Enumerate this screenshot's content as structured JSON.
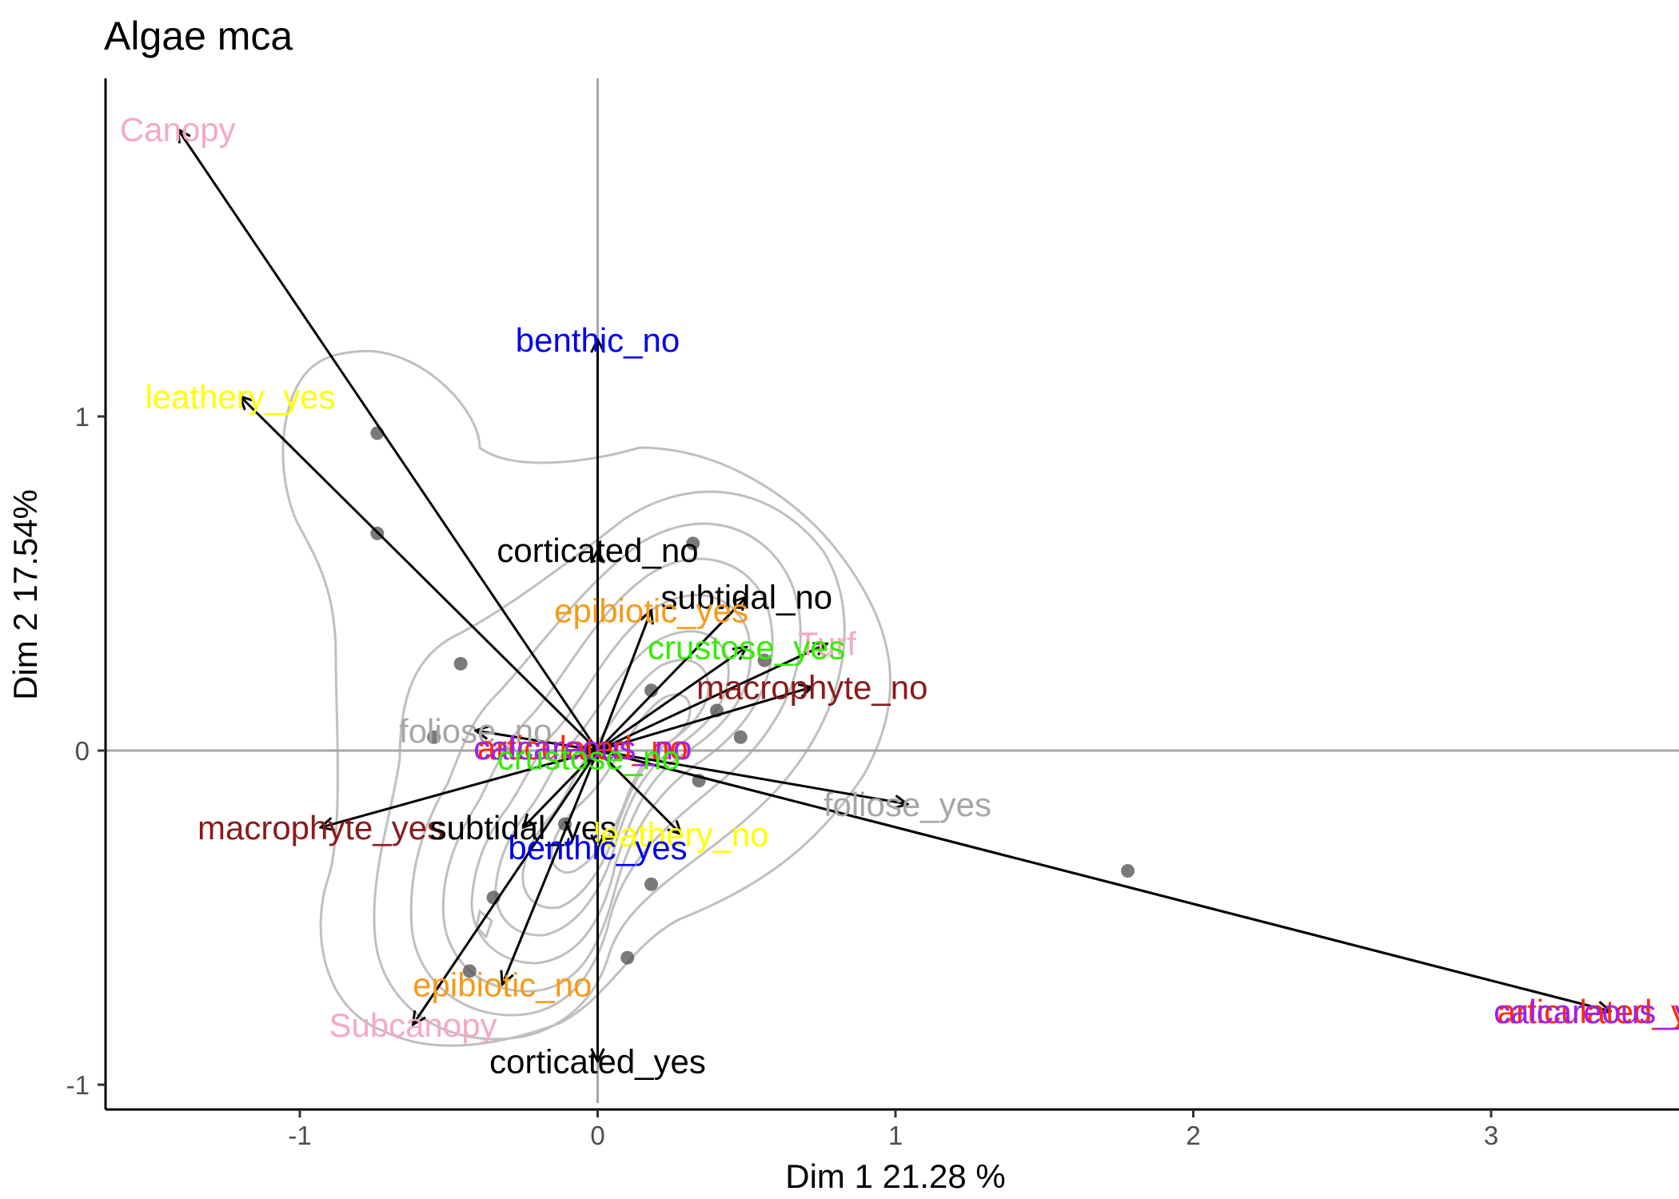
{
  "chart_data": {
    "type": "scatter",
    "title": "Algae mca",
    "xlabel": "Dim 1 21.28 %",
    "ylabel": "Dim 2 17.54%",
    "xlim": [
      -1.65,
      3.65
    ],
    "ylim": [
      -1.06,
      1.99
    ],
    "x_ticks": [
      -1,
      0,
      1,
      2,
      3
    ],
    "y_ticks": [
      -1,
      0,
      1
    ],
    "x_tick_labels": [
      "-1",
      "0",
      "1",
      "2",
      "3"
    ],
    "y_tick_labels": [
      "-1",
      "0",
      "1"
    ],
    "reference_lines": {
      "x": 0,
      "y": 0,
      "color": "#a6a6a6"
    },
    "grid": false,
    "colors": {
      "arrow": "#000000",
      "point": "#4d4d4d",
      "contour": "#bfbfbf"
    },
    "points": [
      {
        "x": -0.74,
        "y": 0.95
      },
      {
        "x": -0.74,
        "y": 0.65
      },
      {
        "x": -0.46,
        "y": 0.26
      },
      {
        "x": -0.55,
        "y": 0.04
      },
      {
        "x": -0.43,
        "y": -0.66
      },
      {
        "x": -0.35,
        "y": -0.44
      },
      {
        "x": -0.11,
        "y": -0.22
      },
      {
        "x": 0.18,
        "y": 0.18
      },
      {
        "x": 0.32,
        "y": 0.62
      },
      {
        "x": 0.4,
        "y": 0.12
      },
      {
        "x": 0.48,
        "y": 0.04
      },
      {
        "x": 0.56,
        "y": 0.27
      },
      {
        "x": 0.34,
        "y": -0.09
      },
      {
        "x": 0.18,
        "y": -0.4
      },
      {
        "x": 0.1,
        "y": -0.62
      },
      {
        "x": 1.78,
        "y": -0.36
      }
    ],
    "variables": [
      {
        "name": "Canopy",
        "x": -1.41,
        "y": 1.86,
        "color": "#f5aac0"
      },
      {
        "name": "leathery_yes",
        "x": -1.2,
        "y": 1.06,
        "color": "#ffff00"
      },
      {
        "name": "benthic_no",
        "x": 0.0,
        "y": 1.23,
        "color": "#0000ee"
      },
      {
        "name": "corticated_no",
        "x": 0.0,
        "y": 0.6,
        "color": "#000000"
      },
      {
        "name": "subtidal_no",
        "x": 0.5,
        "y": 0.46,
        "color": "#000000"
      },
      {
        "name": "epibiotic_yes",
        "x": 0.18,
        "y": 0.42,
        "color": "#f59a1a"
      },
      {
        "name": "Turf",
        "x": 0.77,
        "y": 0.32,
        "color": "#f5aac0"
      },
      {
        "name": "crustose_yes",
        "x": 0.5,
        "y": 0.31,
        "color": "#33ee00"
      },
      {
        "name": "macrophyte_no",
        "x": 0.72,
        "y": 0.19,
        "color": "#8b1a1a"
      },
      {
        "name": "foliose_no",
        "x": -0.41,
        "y": 0.06,
        "color": "#a6a6a6"
      },
      {
        "name": "articulated_no",
        "x": -0.05,
        "y": 0.01,
        "color": "#ff2b00"
      },
      {
        "name": "calcareous_no",
        "x": -0.05,
        "y": 0.01,
        "color": "#a020f0"
      },
      {
        "name": "crustose_no",
        "x": -0.03,
        "y": -0.02,
        "color": "#33ee00"
      },
      {
        "name": "foliose_yes",
        "x": 1.04,
        "y": -0.16,
        "color": "#a6a6a6"
      },
      {
        "name": "macrophyte_yes",
        "x": -0.93,
        "y": -0.23,
        "color": "#8b1a1a"
      },
      {
        "name": "subtidal_yes",
        "x": -0.25,
        "y": -0.23,
        "color": "#000000"
      },
      {
        "name": "leathery_no",
        "x": 0.28,
        "y": -0.25,
        "color": "#ffff00"
      },
      {
        "name": "benthic_yes",
        "x": 0.0,
        "y": -0.29,
        "color": "#0000ee"
      },
      {
        "name": "epibiotic_no",
        "x": -0.32,
        "y": -0.7,
        "color": "#f59a1a"
      },
      {
        "name": "Subcanopy",
        "x": -0.62,
        "y": -0.82,
        "color": "#f5aac0"
      },
      {
        "name": "corticated_yes",
        "x": 0.0,
        "y": -0.93,
        "color": "#000000"
      },
      {
        "name": "articulated_yes",
        "x": 3.4,
        "y": -0.78,
        "color": "#ff2b00"
      },
      {
        "name": "calcareous_yes",
        "x": 3.4,
        "y": -0.78,
        "color": "#a020f0"
      }
    ]
  }
}
